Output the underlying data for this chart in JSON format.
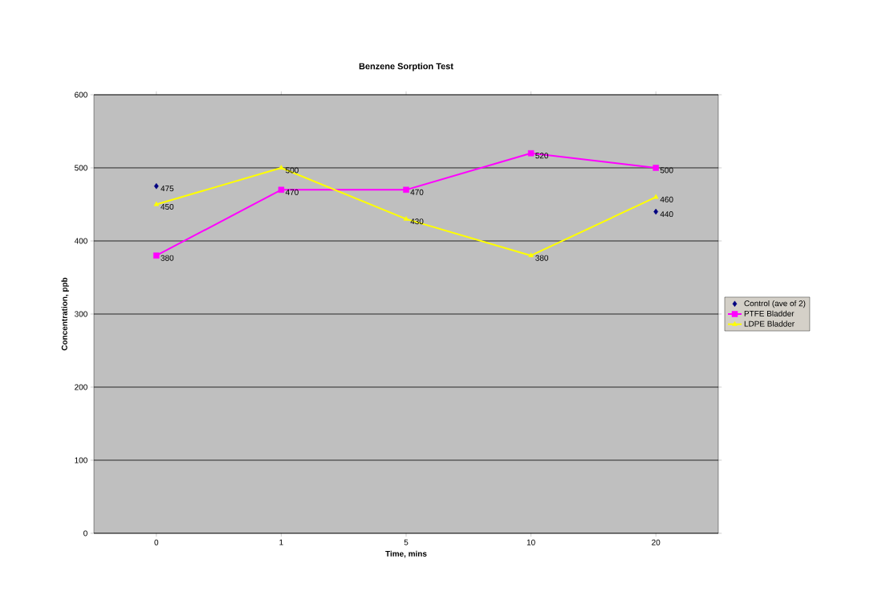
{
  "chart_data": {
    "type": "line",
    "title": "Benzene Sorption Test",
    "xlabel": "Time, mins",
    "ylabel": "Concentration, ppb",
    "categories": [
      "0",
      "1",
      "5",
      "10",
      "20"
    ],
    "series": [
      {
        "name": "Control (ave of 2)",
        "type": "scatter",
        "color": "#000080",
        "marker": "diamond",
        "values": [
          475,
          null,
          null,
          null,
          440
        ]
      },
      {
        "name": "PTFE Bladder",
        "color": "#ff00ff",
        "marker": "square",
        "values": [
          380,
          470,
          470,
          520,
          500
        ]
      },
      {
        "name": "LDPE Bladder",
        "color": "#ffff00",
        "marker": "triangle",
        "values": [
          450,
          500,
          430,
          380,
          460
        ]
      }
    ],
    "ylim": [
      0,
      600
    ],
    "yticks": [
      0,
      100,
      200,
      300,
      400,
      500,
      600
    ],
    "grid": "y",
    "legend": "right",
    "data_labels": true,
    "line_style": "solid"
  }
}
